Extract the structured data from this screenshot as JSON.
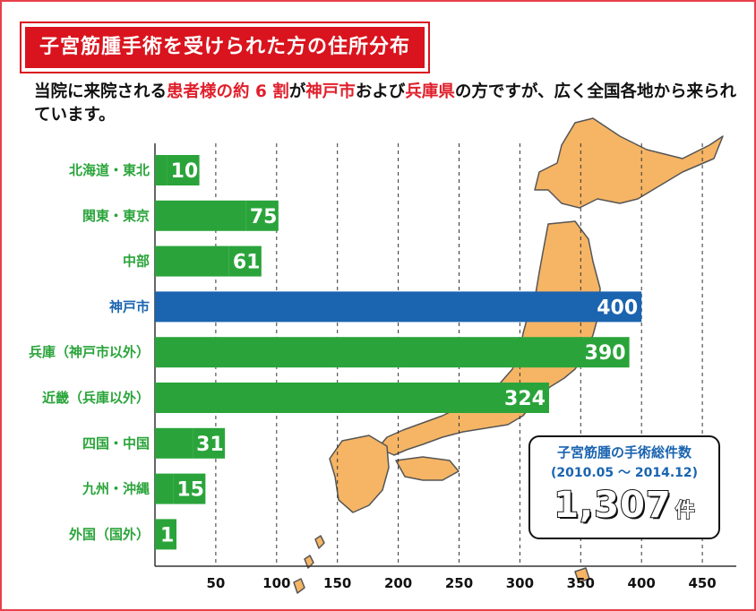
{
  "title": "子宮筋腫手術を受けられた方の住所分布",
  "intro": {
    "part1": "当院に来院される",
    "highlight1": "患者様の約 6 割",
    "part2": "が",
    "highlight2": "神戸市",
    "part3": "および",
    "highlight3": "兵庫県",
    "part4": "の方ですが、広く全国各地から来られています。"
  },
  "summary": {
    "title": "子宮筋腫の手術総件数",
    "period": "(2010.05 ～ 2014.12)",
    "total": "1,307",
    "unit": "件"
  },
  "colors": {
    "green": "#2aa43a",
    "blue": "#1a64b0",
    "red": "#d9141e",
    "map_fill": "#f5b565",
    "map_stroke": "#555555"
  },
  "chart_data": {
    "type": "bar",
    "orientation": "horizontal",
    "categories": [
      "北海道・東北",
      "関東・東京",
      "中部",
      "神戸市",
      "兵庫（神戸市以外）",
      "近畿（兵庫以外）",
      "四国・中国",
      "九州・沖縄",
      "外国（国外）"
    ],
    "values": [
      10,
      75,
      61,
      400,
      390,
      324,
      31,
      15,
      1
    ],
    "value_labels": [
      "10",
      "75",
      "61",
      "400",
      "390",
      "324",
      "31",
      "15",
      "1"
    ],
    "highlight_category": "神戸市",
    "xlim": [
      0,
      470
    ],
    "xticks": [
      50,
      100,
      150,
      200,
      250,
      300,
      350,
      400,
      450
    ],
    "xtick_labels": [
      "50",
      "100",
      "150",
      "200",
      "250",
      "300",
      "350",
      "400",
      "450"
    ],
    "grid": "vertical dashed"
  }
}
